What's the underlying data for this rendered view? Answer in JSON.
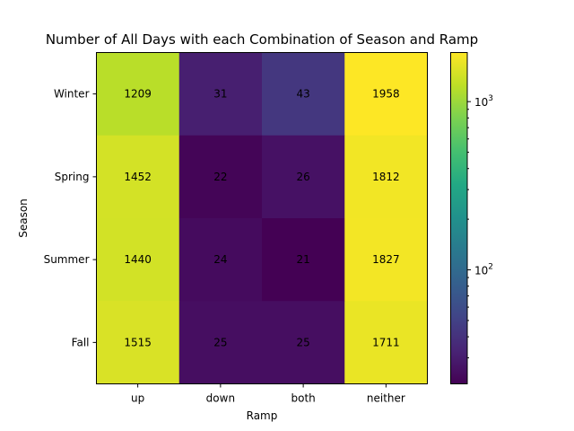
{
  "chart_data": {
    "type": "heatmap",
    "title": "Number of All Days with each Combination of Season and Ramp",
    "xlabel": "Ramp",
    "ylabel": "Season",
    "x_categories": [
      "up",
      "down",
      "both",
      "neither"
    ],
    "y_categories": [
      "Winter",
      "Spring",
      "Summer",
      "Fall"
    ],
    "values": [
      [
        1209,
        31,
        43,
        1958
      ],
      [
        1452,
        22,
        26,
        1812
      ],
      [
        1440,
        24,
        21,
        1827
      ],
      [
        1515,
        25,
        25,
        1711
      ]
    ],
    "colorbar": {
      "scale": "log",
      "colormap": "viridis",
      "range": [
        21,
        1958
      ],
      "tick_labels": [
        {
          "base": "10",
          "exp": "2",
          "value": 100
        },
        {
          "base": "10",
          "exp": "3",
          "value": 1000
        }
      ]
    },
    "grid": false
  }
}
